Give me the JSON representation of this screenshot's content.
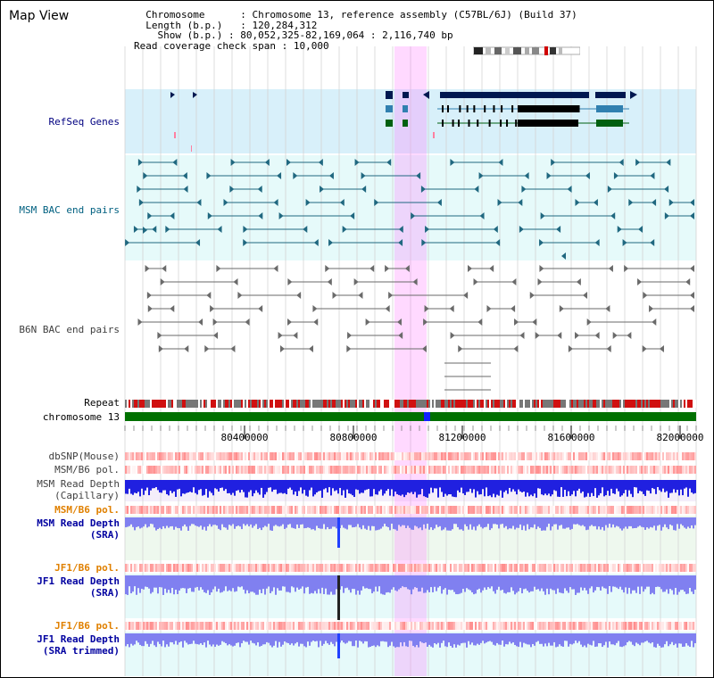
{
  "title": "Map View",
  "info": {
    "chromosome_label": "Chromosome",
    "chromosome_value": "Chromosome 13, reference assembly (C57BL/6J) (Build 37)",
    "length_label": "Length (b.p.)",
    "length_value": "120,284,312",
    "show_label": "Show (b.p.)",
    "show_value": "80,052,325-82,169,064 : 2,116,740 bp",
    "coverage_label": "Read coverage check span",
    "coverage_value": "10,000"
  },
  "tracks": {
    "refseq": "RefSeq Genes",
    "msm_bac": "MSM BAC end pairs",
    "b6n_bac": "B6N BAC end pairs",
    "repeat": "Repeat",
    "chromosome": "chromosome 13",
    "dbsnp": "dbSNP(Mouse)",
    "msm_b6_pol": "MSM/B6 pol.",
    "msm_depth_cap_1": "MSM Read Depth",
    "msm_depth_cap_2": "(Capillary)",
    "msm_b6_pol2": "MSM/B6 pol.",
    "msm_depth_sra_1": "MSM Read Depth",
    "msm_depth_sra_2": "(SRA)",
    "jf1_b6_pol": "JF1/B6 pol.",
    "jf1_depth_sra_1": "JF1 Read Depth",
    "jf1_depth_sra_2": "(SRA)",
    "jf1_b6_pol2": "JF1/B6 pol.",
    "jf1_depth_trim_1": "JF1 Read Depth",
    "jf1_depth_trim_2": "(SRA trimmed)"
  },
  "axis": {
    "ticks": [
      "80400000",
      "80800000",
      "81200000",
      "81600000",
      "82000000"
    ]
  },
  "colors": {
    "refseq_text": "#000080",
    "msm_text": "#006080",
    "b6n_text": "#404040",
    "orange_text": "#e08000",
    "blue_text": "#0000a0",
    "highlight": "#ff80ff",
    "chrom_green": "#007000",
    "read_depth_blue": "#2020e0",
    "read_depth_light": "#8080f0"
  }
}
